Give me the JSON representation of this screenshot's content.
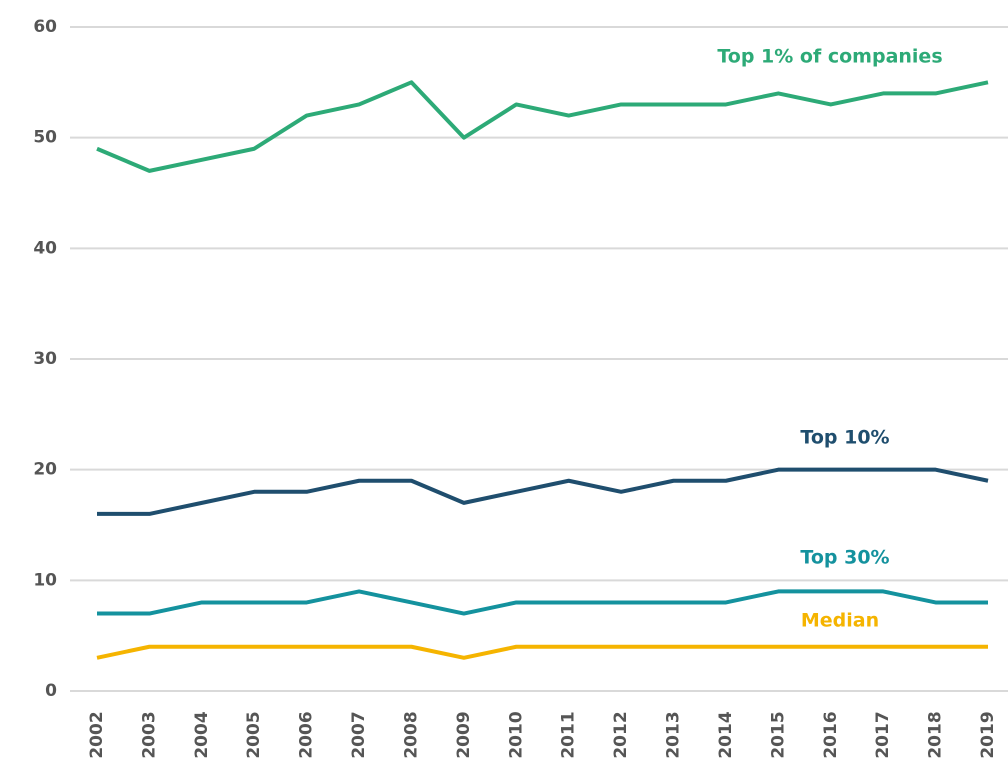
{
  "chart_data": {
    "type": "line",
    "categories": [
      "2002",
      "2003",
      "2004",
      "2005",
      "2006",
      "2007",
      "2008",
      "2009",
      "2010",
      "2011",
      "2012",
      "2013",
      "2014",
      "2015",
      "2016",
      "2017",
      "2018",
      "2019"
    ],
    "series": [
      {
        "name": "Top 1% of companies",
        "color": "#2daa77",
        "values": [
          49,
          47,
          48,
          49,
          52,
          53,
          55,
          50,
          53,
          52,
          53,
          53,
          53,
          54,
          53,
          54,
          54,
          55
        ]
      },
      {
        "name": "Top 10%",
        "color": "#1f4e6e",
        "values": [
          16,
          16,
          17,
          18,
          18,
          19,
          19,
          17,
          18,
          19,
          18,
          19,
          19,
          20,
          20,
          20,
          20,
          19
        ]
      },
      {
        "name": "Top 30%",
        "color": "#14929e",
        "values": [
          7,
          7,
          8,
          8,
          8,
          9,
          8,
          7,
          8,
          8,
          8,
          8,
          8,
          9,
          9,
          9,
          8,
          8
        ]
      },
      {
        "name": "Median",
        "color": "#f5b400",
        "values": [
          3,
          4,
          4,
          4,
          4,
          4,
          4,
          3,
          4,
          4,
          4,
          4,
          4,
          4,
          4,
          4,
          4,
          4
        ]
      }
    ],
    "ylim": [
      0,
      60
    ],
    "yticks": [
      0,
      10,
      20,
      30,
      40,
      50,
      60
    ],
    "grid": true
  }
}
